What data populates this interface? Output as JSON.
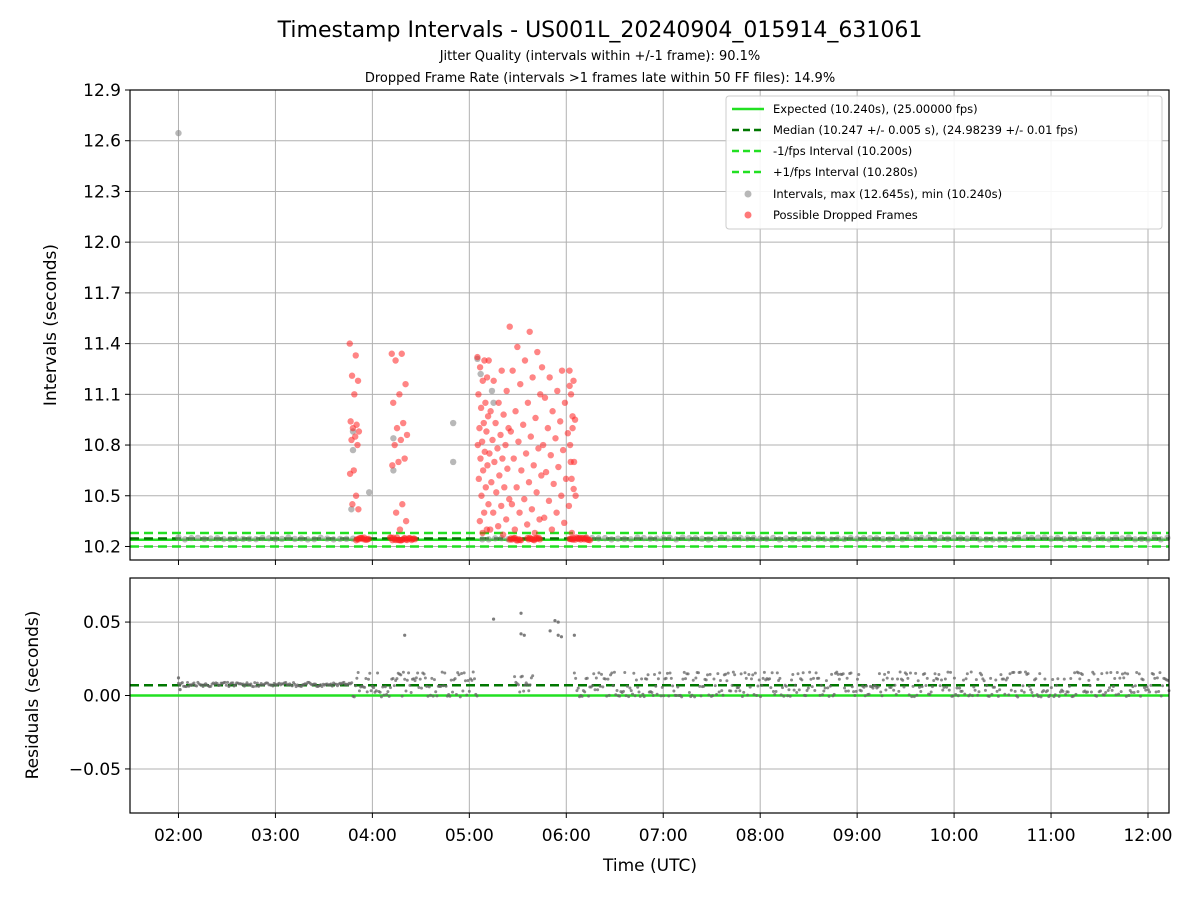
{
  "figure": {
    "title": "Timestamp Intervals - US001L_20240904_015914_631061",
    "subtitle_1": "Jitter Quality (intervals within +/-1 frame): 90.1%",
    "subtitle_2": "Dropped Frame Rate (intervals >1 frames late within 50 FF files): 14.9%",
    "xlabel": "Time (UTC)",
    "colors": {
      "expected": "#22e022",
      "median": "#007700",
      "interval": "#22e022",
      "intervals_points": "#888888",
      "dropped_points": "#ff2020",
      "residual_points": "#666666"
    }
  },
  "chart_data": [
    {
      "type": "scatter",
      "panel": "top",
      "ylabel": "Intervals (seconds)",
      "ylim": [
        10.12,
        12.9
      ],
      "yticks": [
        10.2,
        10.5,
        10.8,
        11.1,
        11.4,
        11.7,
        12.0,
        12.3,
        12.6,
        12.9
      ],
      "ytick_labels": [
        "10.2",
        "10.5",
        "10.8",
        "11.1",
        "11.4",
        "11.7",
        "12.0",
        "12.3",
        "12.6",
        "12.9"
      ],
      "xlim": [
        "01:30",
        "12:13"
      ],
      "xticks": [
        "02:00",
        "03:00",
        "04:00",
        "05:00",
        "06:00",
        "07:00",
        "08:00",
        "09:00",
        "10:00",
        "11:00",
        "12:00"
      ],
      "grid": true,
      "legend_position": "top-right",
      "reference_lines": [
        {
          "name": "Expected (10.240s), (25.00000 fps)",
          "y": 10.24,
          "style": "solid",
          "color": "#22e022"
        },
        {
          "name": "Median (10.247 +/- 0.005 s), (24.98239 +/- 0.01 fps)",
          "y": 10.247,
          "style": "dashed",
          "color": "#007700"
        },
        {
          "name": "-1/fps Interval (10.200s)",
          "y": 10.2,
          "style": "dashed",
          "color": "#22e022"
        },
        {
          "name": "+1/fps Interval (10.280s)",
          "y": 10.28,
          "style": "dashed",
          "color": "#22e022"
        }
      ],
      "series": [
        {
          "name": "Intervals, max (12.645s), min (10.240s)",
          "color": "#888888",
          "baseline_value": 10.247,
          "points": [
            [
              "02:00",
              12.645
            ],
            [
              "03:48",
              10.88
            ],
            [
              "03:48",
              10.77
            ],
            [
              "03:47",
              10.42
            ],
            [
              "03:58",
              10.52
            ],
            [
              "04:13",
              10.84
            ],
            [
              "04:13",
              10.65
            ],
            [
              "04:50",
              10.93
            ],
            [
              "04:50",
              10.7
            ],
            [
              "05:07",
              11.22
            ],
            [
              "05:14",
              11.12
            ],
            [
              "05:15",
              11.05
            ],
            [
              "05:05",
              11.31
            ]
          ]
        },
        {
          "name": "Possible Dropped Frames",
          "color": "#ff2020",
          "clusters": [
            {
              "x_from": "03:46",
              "x_to": "03:52",
              "y_values": [
                11.4,
                11.33,
                11.21,
                11.18,
                11.1,
                10.94,
                10.92,
                10.9,
                10.88,
                10.85,
                10.83,
                10.8,
                10.65,
                10.63,
                10.5,
                10.45,
                10.42
              ]
            },
            {
              "x_from": "04:12",
              "x_to": "04:22",
              "y_values": [
                11.34,
                11.34,
                11.3,
                11.16,
                11.1,
                11.05,
                10.93,
                10.9,
                10.86,
                10.83,
                10.8,
                10.72,
                10.7,
                10.68,
                10.45,
                10.4,
                10.35,
                10.3
              ]
            },
            {
              "x_from": "05:05",
              "x_to": "05:12",
              "y_values": [
                11.32,
                11.3,
                11.26,
                11.2,
                11.18,
                11.1,
                11.05,
                11.02,
                10.97,
                10.93,
                10.9,
                10.88,
                10.82,
                10.8,
                10.76,
                10.72,
                10.68,
                10.65,
                10.6,
                10.55,
                10.5,
                10.45,
                10.4,
                10.35,
                10.3,
                10.28
              ]
            },
            {
              "x_from": "05:12",
              "x_to": "05:25",
              "y_values": [
                11.3,
                11.24,
                11.18,
                11.12,
                11.05,
                11.0,
                10.98,
                10.93,
                10.9,
                10.86,
                10.83,
                10.8,
                10.78,
                10.75,
                10.72,
                10.7,
                10.66,
                10.62,
                10.58,
                10.55,
                10.52,
                10.48,
                10.44,
                10.4,
                10.36,
                10.32,
                10.3,
                10.27
              ]
            },
            {
              "x_from": "05:25",
              "x_to": "05:45",
              "y_values": [
                11.5,
                11.47,
                11.38,
                11.35,
                11.3,
                11.24,
                11.2,
                11.16,
                11.1,
                11.05,
                11.0,
                10.96,
                10.92,
                10.88,
                10.85,
                10.82,
                10.78,
                10.75,
                10.72,
                10.68,
                10.65,
                10.62,
                10.58,
                10.55,
                10.52,
                10.48,
                10.45,
                10.42,
                10.4,
                10.36,
                10.33,
                10.3,
                10.28
              ]
            },
            {
              "x_from": "05:45",
              "x_to": "06:05",
              "y_values": [
                11.26,
                11.24,
                11.2,
                11.15,
                11.12,
                11.08,
                11.05,
                11.0,
                10.97,
                10.94,
                10.9,
                10.87,
                10.84,
                10.8,
                10.77,
                10.74,
                10.7,
                10.67,
                10.64,
                10.6,
                10.57,
                10.54,
                10.5,
                10.47,
                10.44,
                10.4,
                10.37,
                10.34,
                10.3,
                10.28
              ]
            },
            {
              "x_from": "06:02",
              "x_to": "06:06",
              "y_values": [
                11.24,
                11.18,
                11.1,
                10.95,
                10.9,
                10.8,
                10.7,
                10.6,
                10.5
              ]
            }
          ],
          "baseline_clusters": [
            {
              "x_from": "03:50",
              "x_to": "03:58",
              "y": 10.245
            },
            {
              "x_from": "04:11",
              "x_to": "04:27",
              "y": 10.245
            },
            {
              "x_from": "05:25",
              "x_to": "05:32",
              "y": 10.245
            },
            {
              "x_from": "05:36",
              "x_to": "05:44",
              "y": 10.245
            },
            {
              "x_from": "06:02",
              "x_to": "06:15",
              "y": 10.245
            }
          ]
        }
      ]
    },
    {
      "type": "scatter",
      "panel": "bottom",
      "ylabel": "Residuals (seconds)",
      "ylim": [
        -0.08,
        0.08
      ],
      "yticks": [
        -0.05,
        0.0,
        0.05
      ],
      "ytick_labels": [
        "−0.05",
        "0.00",
        "0.05"
      ],
      "xlim": [
        "01:30",
        "12:13"
      ],
      "xticks": [
        "02:00",
        "03:00",
        "04:00",
        "05:00",
        "06:00",
        "07:00",
        "08:00",
        "09:00",
        "10:00",
        "11:00",
        "12:00"
      ],
      "xtick_labels": [
        "02:00",
        "03:00",
        "04:00",
        "05:00",
        "06:00",
        "07:00",
        "08:00",
        "09:00",
        "10:00",
        "11:00",
        "12:00"
      ],
      "grid": true,
      "reference_lines": [
        {
          "name": "Expected",
          "y": 0.0,
          "style": "solid",
          "color": "#22e022"
        },
        {
          "name": "Median",
          "y": 0.007,
          "style": "dashed",
          "color": "#007700"
        }
      ],
      "residual_segments": [
        {
          "x_from": "02:00",
          "x_to": "03:48",
          "y_values": [
            0.007,
            0.008
          ]
        },
        {
          "x_from": "03:48",
          "x_to": "05:05",
          "y_values": [
            0.0,
            0.003,
            0.006,
            0.011,
            0.015
          ]
        },
        {
          "x_from": "05:28",
          "x_to": "05:40",
          "y_values": [
            0.003,
            0.008,
            0.013
          ]
        },
        {
          "x_from": "06:05",
          "x_to": "12:13",
          "y_values": [
            0.0,
            0.003,
            0.006,
            0.011,
            0.015
          ]
        }
      ],
      "outliers": [
        [
          "02:00",
          0.012
        ],
        [
          "02:01",
          0.004
        ],
        [
          "04:20",
          0.041
        ],
        [
          "05:15",
          0.052
        ],
        [
          "05:32",
          0.056
        ],
        [
          "05:32",
          0.042
        ],
        [
          "05:34",
          0.041
        ],
        [
          "05:50",
          0.044
        ],
        [
          "05:53",
          0.051
        ],
        [
          "05:55",
          0.05
        ],
        [
          "05:55",
          0.041
        ],
        [
          "05:57",
          0.04
        ],
        [
          "06:05",
          0.041
        ]
      ]
    }
  ]
}
